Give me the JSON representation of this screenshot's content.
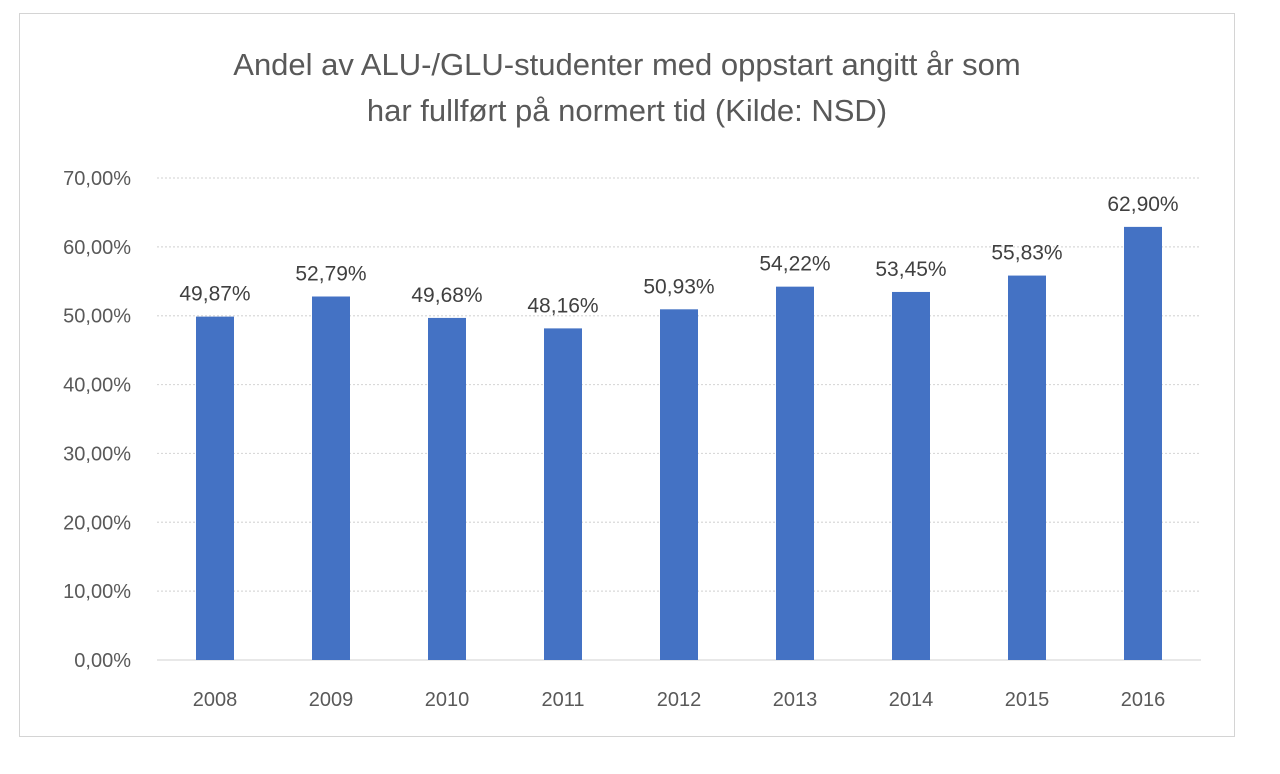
{
  "chart_data": {
    "type": "bar",
    "title_lines": [
      "Andel av ALU-/GLU-studenter med oppstart angitt år som",
      "har fullført på normert  tid (Kilde: NSD)"
    ],
    "categories": [
      "2008",
      "2009",
      "2010",
      "2011",
      "2012",
      "2013",
      "2014",
      "2015",
      "2016"
    ],
    "values": [
      49.87,
      52.79,
      49.68,
      48.16,
      50.93,
      54.22,
      53.45,
      55.83,
      62.9
    ],
    "data_labels": [
      "49,87%",
      "52,79%",
      "49,68%",
      "48,16%",
      "50,93%",
      "54,22%",
      "53,45%",
      "55,83%",
      "62,90%"
    ],
    "y_ticks": [
      0,
      10,
      20,
      30,
      40,
      50,
      60,
      70
    ],
    "y_tick_labels": [
      "0,00%",
      "10,00%",
      "20,00%",
      "30,00%",
      "40,00%",
      "50,00%",
      "60,00%",
      "70,00%"
    ],
    "ylim": [
      0,
      70
    ],
    "grid": true,
    "legend": "none",
    "bar_color": "#4472c4"
  }
}
